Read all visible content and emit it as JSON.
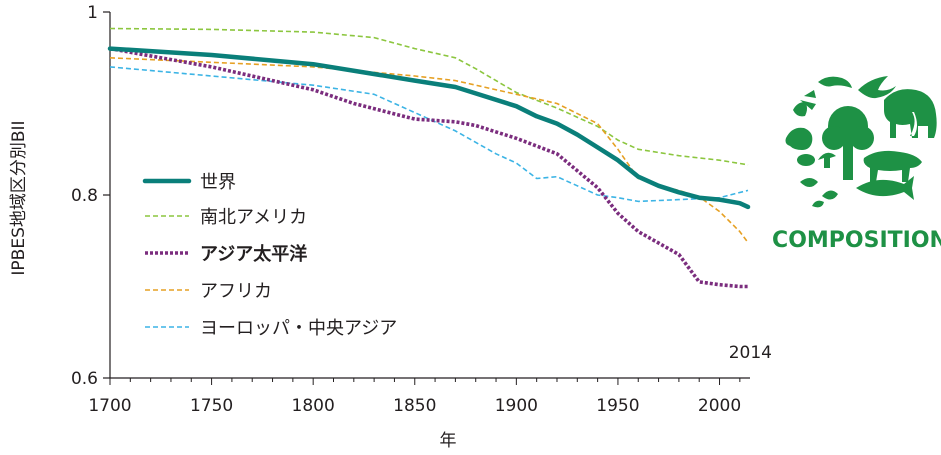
{
  "chart_data": {
    "type": "line",
    "xlabel": "年",
    "ylabel": "IPBES地域区分別BII",
    "xlim": [
      1700,
      2015
    ],
    "ylim": [
      0.6,
      1.0
    ],
    "x_ticks": [
      "1700",
      "1750",
      "1800",
      "1850",
      "1900",
      "1950",
      "2000"
    ],
    "y_ticks": [
      "0.6",
      "0.8",
      "1"
    ],
    "grid": false,
    "legend_placement": "left-center",
    "annotation": "2014",
    "series": [
      {
        "name": "世界",
        "color": "#0a7f7a",
        "style": "solid-thick",
        "label_color": "#231f20",
        "x": [
          1700,
          1750,
          1800,
          1850,
          1870,
          1900,
          1910,
          1920,
          1930,
          1940,
          1950,
          1960,
          1970,
          1980,
          1990,
          2000,
          2010,
          2014
        ],
        "y": [
          0.96,
          0.953,
          0.943,
          0.925,
          0.918,
          0.897,
          0.886,
          0.878,
          0.866,
          0.852,
          0.838,
          0.82,
          0.81,
          0.803,
          0.797,
          0.795,
          0.791,
          0.787
        ]
      },
      {
        "name": "南北アメリカ",
        "color": "#8cc63f",
        "style": "dashed",
        "label_color": "#231f20",
        "x": [
          1700,
          1750,
          1800,
          1830,
          1850,
          1870,
          1880,
          1900,
          1920,
          1940,
          1950,
          1960,
          1980,
          2000,
          2014
        ],
        "y": [
          0.982,
          0.981,
          0.978,
          0.972,
          0.96,
          0.95,
          0.938,
          0.912,
          0.895,
          0.875,
          0.86,
          0.85,
          0.843,
          0.838,
          0.833
        ]
      },
      {
        "name": "アジア太平洋",
        "color": "#7b2d7e",
        "style": "dotted-thick",
        "label_color": "#e31e24",
        "x": [
          1700,
          1750,
          1780,
          1800,
          1820,
          1850,
          1870,
          1880,
          1900,
          1920,
          1940,
          1950,
          1960,
          1980,
          1990,
          2000,
          2010,
          2014
        ],
        "y": [
          0.96,
          0.94,
          0.925,
          0.915,
          0.9,
          0.883,
          0.88,
          0.876,
          0.862,
          0.845,
          0.808,
          0.78,
          0.76,
          0.735,
          0.705,
          0.702,
          0.7,
          0.7
        ]
      },
      {
        "name": "アフリカ",
        "color": "#e6a023",
        "style": "dashed",
        "label_color": "#231f20",
        "x": [
          1700,
          1750,
          1800,
          1850,
          1870,
          1900,
          1920,
          1940,
          1950,
          1960,
          1970,
          1980,
          1990,
          2000,
          2010,
          2014
        ],
        "y": [
          0.95,
          0.945,
          0.94,
          0.93,
          0.925,
          0.91,
          0.9,
          0.878,
          0.85,
          0.818,
          0.81,
          0.805,
          0.798,
          0.782,
          0.76,
          0.748
        ]
      },
      {
        "name": "ヨーロッパ・中央アジア",
        "color": "#3cb4e5",
        "style": "dashed",
        "label_color": "#231f20",
        "x": [
          1700,
          1750,
          1800,
          1830,
          1850,
          1870,
          1890,
          1900,
          1910,
          1920,
          1930,
          1940,
          1950,
          1960,
          1980,
          2000,
          2014
        ],
        "y": [
          0.94,
          0.93,
          0.92,
          0.91,
          0.89,
          0.87,
          0.845,
          0.835,
          0.818,
          0.82,
          0.81,
          0.8,
          0.797,
          0.793,
          0.795,
          0.797,
          0.805
        ]
      }
    ]
  },
  "logo": {
    "text": "COMPOSITION",
    "color": "#1e9145"
  }
}
